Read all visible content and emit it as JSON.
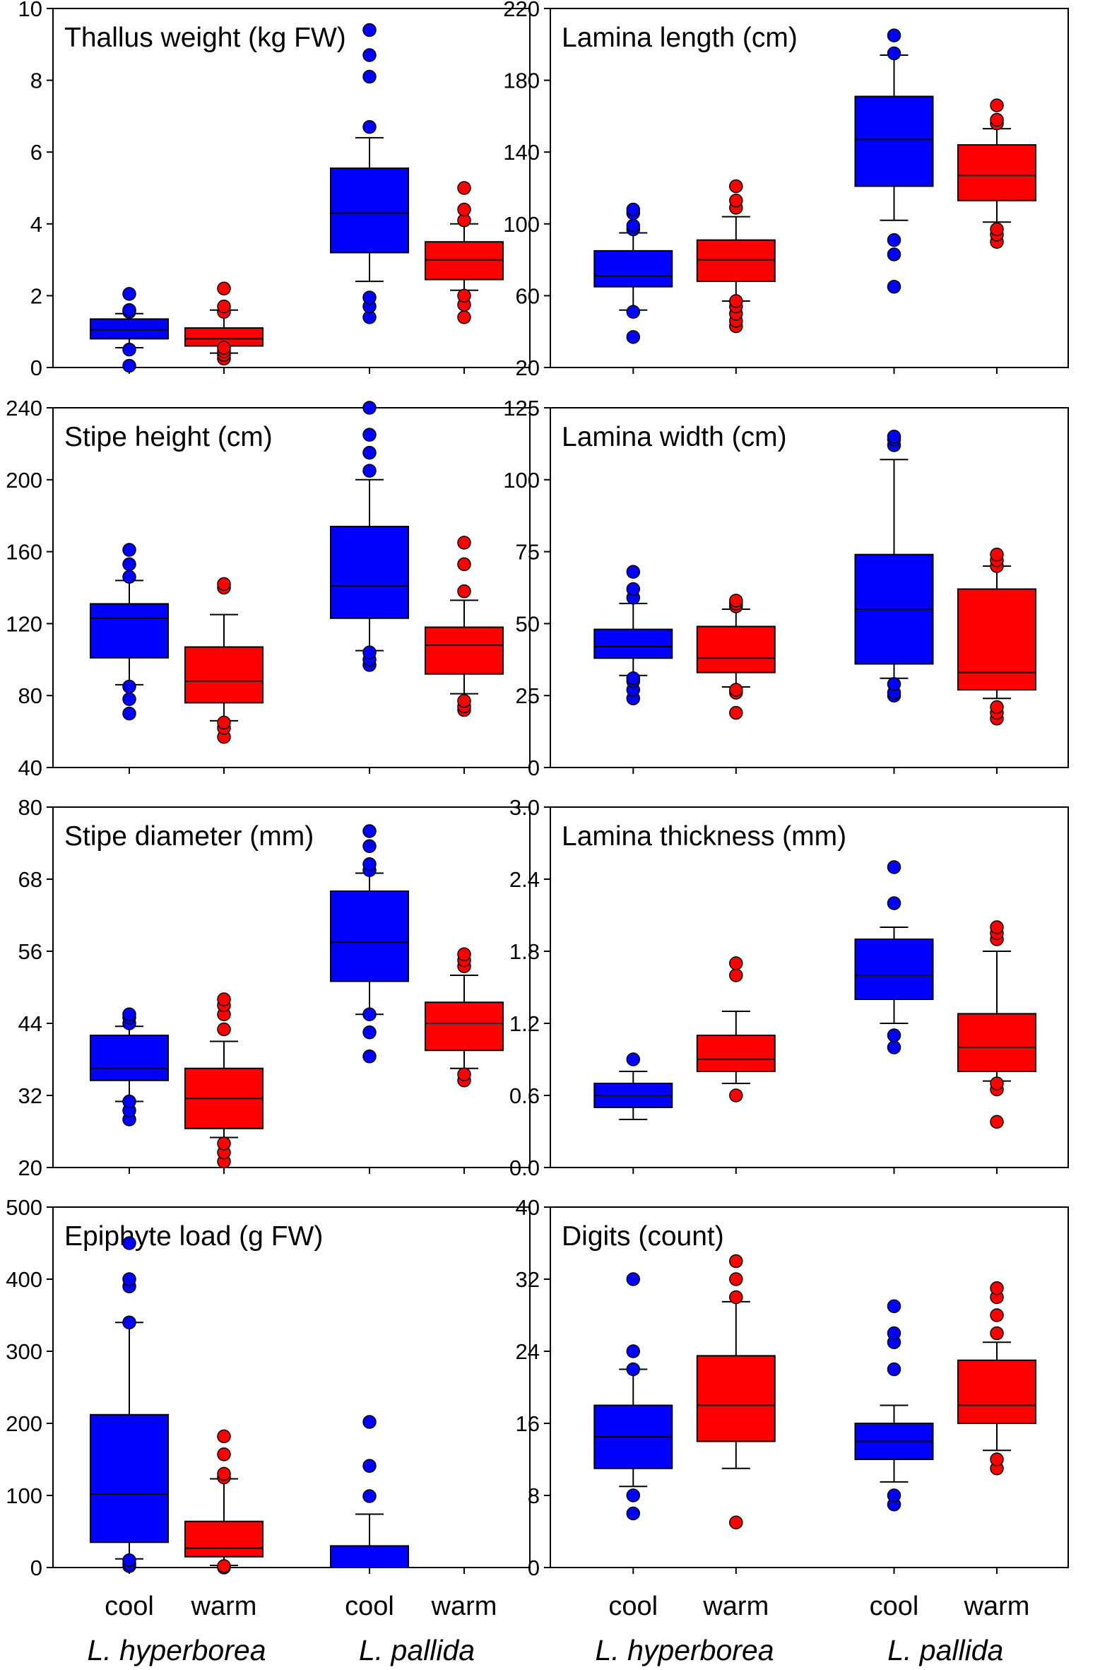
{
  "colors": {
    "cool": "#0000ff",
    "warm": "#ff0000",
    "axis": "#000000"
  },
  "chart_data": [
    {
      "type": "box",
      "panel": "thallus-weight",
      "title": "Thallus weight (kg FW)",
      "ylim": [
        0,
        10
      ],
      "yticks": [
        0,
        2,
        4,
        6,
        8,
        10
      ],
      "tick_labels": [
        "0",
        "2",
        "4",
        "6",
        "8",
        "10"
      ],
      "boxes": [
        {
          "group": "cool",
          "species": "L. hyperborea",
          "q1": 0.8,
          "median": 1.05,
          "q3": 1.35,
          "whisker_low": 0.55,
          "whisker_high": 1.5,
          "outliers": [
            0.05,
            0.5,
            1.55,
            1.6,
            2.05
          ]
        },
        {
          "group": "warm",
          "species": "L. hyperborea",
          "q1": 0.6,
          "median": 0.8,
          "q3": 1.1,
          "whisker_low": 0.4,
          "whisker_high": 1.6,
          "outliers": [
            0.25,
            0.35,
            0.45,
            0.55,
            1.55,
            1.7,
            2.2
          ]
        },
        {
          "group": "cool",
          "species": "L. pallida",
          "q1": 3.2,
          "median": 4.3,
          "q3": 5.55,
          "whisker_low": 2.4,
          "whisker_high": 6.4,
          "outliers": [
            1.4,
            1.7,
            1.95,
            6.7,
            8.1,
            8.7,
            9.4
          ]
        },
        {
          "group": "warm",
          "species": "L. pallida",
          "q1": 2.45,
          "median": 3.0,
          "q3": 3.5,
          "whisker_low": 2.15,
          "whisker_high": 4.0,
          "outliers": [
            1.4,
            1.75,
            2.0,
            4.1,
            4.4,
            5.0
          ]
        }
      ]
    },
    {
      "type": "box",
      "panel": "lamina-length",
      "title": "Lamina length (cm)",
      "ylim": [
        20,
        220
      ],
      "yticks": [
        20,
        60,
        100,
        140,
        180,
        220
      ],
      "tick_labels": [
        "20",
        "60",
        "100",
        "140",
        "180",
        "220"
      ],
      "boxes": [
        {
          "group": "cool",
          "species": "L. hyperborea",
          "q1": 65,
          "median": 71,
          "q3": 85,
          "whisker_low": 52,
          "whisker_high": 95,
          "outliers": [
            37,
            51,
            97,
            99,
            106,
            108
          ]
        },
        {
          "group": "warm",
          "species": "L. hyperborea",
          "q1": 68,
          "median": 80,
          "q3": 91,
          "whisker_low": 57,
          "whisker_high": 104,
          "outliers": [
            43,
            46,
            50,
            54,
            57,
            109,
            113,
            121
          ]
        },
        {
          "group": "cool",
          "species": "L. pallida",
          "q1": 121,
          "median": 147,
          "q3": 171,
          "whisker_low": 102,
          "whisker_high": 194,
          "outliers": [
            65,
            83,
            91,
            195,
            205
          ]
        },
        {
          "group": "warm",
          "species": "L. pallida",
          "q1": 113,
          "median": 127,
          "q3": 144,
          "whisker_low": 101,
          "whisker_high": 153,
          "outliers": [
            90,
            94,
            97,
            156,
            158,
            166
          ]
        }
      ]
    },
    {
      "type": "box",
      "panel": "stipe-height",
      "title": "Stipe height (cm)",
      "ylim": [
        40,
        240
      ],
      "yticks": [
        40,
        80,
        120,
        160,
        200,
        240
      ],
      "tick_labels": [
        "40",
        "80",
        "120",
        "160",
        "200",
        "240"
      ],
      "boxes": [
        {
          "group": "cool",
          "species": "L. hyperborea",
          "q1": 101,
          "median": 123,
          "q3": 131,
          "whisker_low": 86,
          "whisker_high": 144,
          "outliers": [
            70,
            78,
            85,
            146,
            153,
            161
          ]
        },
        {
          "group": "warm",
          "species": "L. hyperborea",
          "q1": 76,
          "median": 88,
          "q3": 107,
          "whisker_low": 66,
          "whisker_high": 125,
          "outliers": [
            57,
            62,
            65,
            140,
            142
          ]
        },
        {
          "group": "cool",
          "species": "L. pallida",
          "q1": 123,
          "median": 141,
          "q3": 174,
          "whisker_low": 105,
          "whisker_high": 200,
          "outliers": [
            97,
            100,
            104,
            205,
            215,
            225,
            240
          ]
        },
        {
          "group": "warm",
          "species": "L. pallida",
          "q1": 92,
          "median": 108,
          "q3": 118,
          "whisker_low": 81,
          "whisker_high": 133,
          "outliers": [
            72,
            74,
            77,
            138,
            153,
            165
          ]
        }
      ]
    },
    {
      "type": "box",
      "panel": "lamina-width",
      "title": "Lamina width (cm)",
      "ylim": [
        0,
        125
      ],
      "yticks": [
        0,
        25,
        50,
        75,
        100,
        125
      ],
      "tick_labels": [
        "0",
        "25",
        "50",
        "75",
        "100",
        "125"
      ],
      "boxes": [
        {
          "group": "cool",
          "species": "L. hyperborea",
          "q1": 38,
          "median": 42,
          "q3": 48,
          "whisker_low": 32,
          "whisker_high": 57,
          "outliers": [
            24,
            27,
            30,
            31,
            59,
            62,
            68
          ]
        },
        {
          "group": "warm",
          "species": "L. hyperborea",
          "q1": 33,
          "median": 38,
          "q3": 49,
          "whisker_low": 28,
          "whisker_high": 55,
          "outliers": [
            19,
            26,
            27,
            56,
            57,
            58
          ]
        },
        {
          "group": "cool",
          "species": "L. pallida",
          "q1": 36,
          "median": 55,
          "q3": 74,
          "whisker_low": 31,
          "whisker_high": 107,
          "outliers": [
            25,
            26,
            29,
            112,
            114,
            115
          ]
        },
        {
          "group": "warm",
          "species": "L. pallida",
          "q1": 27,
          "median": 33,
          "q3": 62,
          "whisker_low": 24,
          "whisker_high": 70,
          "outliers": [
            17,
            19,
            21,
            70,
            72,
            74
          ]
        }
      ]
    },
    {
      "type": "box",
      "panel": "stipe-diameter",
      "title": "Stipe diameter (mm)",
      "ylim": [
        20,
        80
      ],
      "yticks": [
        20,
        32,
        44,
        56,
        68,
        80
      ],
      "tick_labels": [
        "20",
        "32",
        "44",
        "56",
        "68",
        "80"
      ],
      "boxes": [
        {
          "group": "cool",
          "species": "L. hyperborea",
          "q1": 34.5,
          "median": 36.5,
          "q3": 42,
          "whisker_low": 31,
          "whisker_high": 43.5,
          "outliers": [
            28,
            29.5,
            31,
            44,
            45,
            45.5
          ]
        },
        {
          "group": "warm",
          "species": "L. hyperborea",
          "q1": 26.5,
          "median": 31.5,
          "q3": 36.5,
          "whisker_low": 25,
          "whisker_high": 41,
          "outliers": [
            21,
            22.5,
            24,
            43,
            45.5,
            47,
            48
          ]
        },
        {
          "group": "cool",
          "species": "L. pallida",
          "q1": 51,
          "median": 57.5,
          "q3": 66,
          "whisker_low": 45.5,
          "whisker_high": 69,
          "outliers": [
            38.5,
            42.5,
            45.5,
            69.5,
            70.5,
            73.5,
            76
          ]
        },
        {
          "group": "warm",
          "species": "L. pallida",
          "q1": 39.5,
          "median": 44,
          "q3": 47.5,
          "whisker_low": 36.5,
          "whisker_high": 52,
          "outliers": [
            34.5,
            35.5,
            53.5,
            54.5,
            55.5
          ]
        }
      ]
    },
    {
      "type": "box",
      "panel": "lamina-thickness",
      "title": "Lamina thickness (mm)",
      "ylim": [
        0.0,
        3.0
      ],
      "yticks": [
        0.0,
        0.6,
        1.2,
        1.8,
        2.4,
        3.0
      ],
      "tick_labels": [
        "0.0",
        "0.6",
        "1.2",
        "1.8",
        "2.4",
        "3.0"
      ],
      "boxes": [
        {
          "group": "cool",
          "species": "L. hyperborea",
          "q1": 0.5,
          "median": 0.6,
          "q3": 0.7,
          "whisker_low": 0.4,
          "whisker_high": 0.8,
          "outliers": [
            0.9
          ]
        },
        {
          "group": "warm",
          "species": "L. hyperborea",
          "q1": 0.8,
          "median": 0.9,
          "q3": 1.1,
          "whisker_low": 0.7,
          "whisker_high": 1.3,
          "outliers": [
            0.6,
            1.6,
            1.7
          ]
        },
        {
          "group": "cool",
          "species": "L. pallida",
          "q1": 1.4,
          "median": 1.6,
          "q3": 1.9,
          "whisker_low": 1.2,
          "whisker_high": 2.0,
          "outliers": [
            1.0,
            1.1,
            2.2,
            2.5
          ]
        },
        {
          "group": "warm",
          "species": "L. pallida",
          "q1": 0.8,
          "median": 1.0,
          "q3": 1.28,
          "whisker_low": 0.72,
          "whisker_high": 1.8,
          "outliers": [
            0.38,
            0.65,
            0.7,
            1.9,
            1.95,
            2.0
          ]
        }
      ]
    },
    {
      "type": "box",
      "panel": "epiphyte-load",
      "title": "Epiphyte load (g FW)",
      "ylim": [
        0,
        500
      ],
      "yticks": [
        0,
        100,
        200,
        300,
        400,
        500
      ],
      "tick_labels": [
        "0",
        "100",
        "200",
        "300",
        "400",
        "500"
      ],
      "boxes": [
        {
          "group": "cool",
          "species": "L. hyperborea",
          "q1": 35,
          "median": 102,
          "q3": 212,
          "whisker_low": 12,
          "whisker_high": 340,
          "outliers": [
            2,
            5,
            10,
            340,
            390,
            400,
            450
          ]
        },
        {
          "group": "warm",
          "species": "L. hyperborea",
          "q1": 15,
          "median": 27,
          "q3": 64,
          "whisker_low": 3,
          "whisker_high": 123,
          "outliers": [
            0,
            2,
            125,
            130,
            157,
            182
          ]
        },
        {
          "group": "cool",
          "species": "L. pallida",
          "q1": 0,
          "median": 0,
          "q3": 30,
          "whisker_low": 0,
          "whisker_high": 74,
          "outliers": [
            99,
            141,
            202
          ]
        }
      ]
    },
    {
      "type": "box",
      "panel": "digits",
      "title": "Digits (count)",
      "ylim": [
        0,
        40
      ],
      "yticks": [
        0,
        8,
        16,
        24,
        32,
        40
      ],
      "tick_labels": [
        "0",
        "8",
        "16",
        "24",
        "32",
        "40"
      ],
      "boxes": [
        {
          "group": "cool",
          "species": "L. hyperborea",
          "q1": 11,
          "median": 14.5,
          "q3": 18,
          "whisker_low": 9,
          "whisker_high": 22,
          "outliers": [
            6,
            8,
            22,
            24,
            32
          ]
        },
        {
          "group": "warm",
          "species": "L. hyperborea",
          "q1": 14,
          "median": 18,
          "q3": 23.5,
          "whisker_low": 11,
          "whisker_high": 29.5,
          "outliers": [
            5,
            30,
            32,
            34
          ]
        },
        {
          "group": "cool",
          "species": "L. pallida",
          "q1": 12,
          "median": 14,
          "q3": 16,
          "whisker_low": 9.5,
          "whisker_high": 18,
          "outliers": [
            7,
            8,
            22,
            25,
            26,
            29
          ]
        },
        {
          "group": "warm",
          "species": "L. pallida",
          "q1": 16,
          "median": 18,
          "q3": 23,
          "whisker_low": 13,
          "whisker_high": 25,
          "outliers": [
            11,
            12,
            26,
            28,
            30,
            31
          ]
        }
      ]
    }
  ],
  "x_axis": {
    "group_labels": [
      "cool",
      "warm",
      "cool",
      "warm"
    ],
    "species_labels": [
      "L. hyperborea",
      "L. pallida"
    ]
  }
}
